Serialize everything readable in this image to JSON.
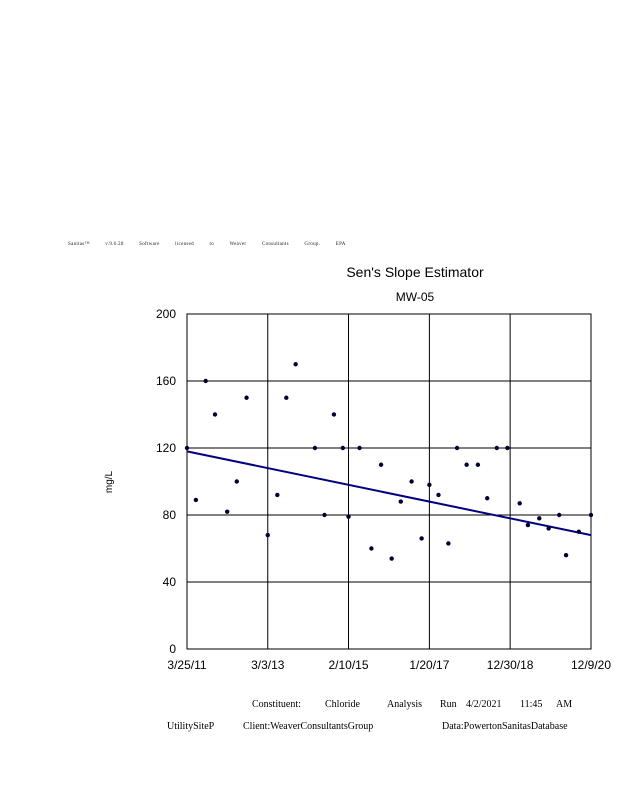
{
  "license": "Sanitas™ v.9.6.28 Software licensed to Weaver Consultants Group. EPA",
  "chart_data": {
    "type": "scatter",
    "title": "Sen's Slope Estimator",
    "subtitle": "MW-05",
    "ylabel": "mg/L",
    "xlabel": "",
    "ylim": [
      0,
      200
    ],
    "yticks": [
      0,
      40,
      80,
      120,
      160,
      200
    ],
    "xlim": [
      "2011-03-25",
      "2020-12-09"
    ],
    "xticks": [
      "2011-03-25",
      "2013-03-03",
      "2015-02-10",
      "2017-01-20",
      "2018-12-30",
      "2020-12-09"
    ],
    "xtick_labels": [
      "3/25/11",
      "3/3/13",
      "2/10/15",
      "1/20/17",
      "12/30/18",
      "12/9/20"
    ],
    "grid": true,
    "points": [
      {
        "x": "2011-03-25",
        "y": 120
      },
      {
        "x": "2011-06-11",
        "y": 89
      },
      {
        "x": "2011-09-05",
        "y": 160
      },
      {
        "x": "2011-11-26",
        "y": 140
      },
      {
        "x": "2012-03-12",
        "y": 82
      },
      {
        "x": "2012-06-04",
        "y": 100
      },
      {
        "x": "2012-08-29",
        "y": 150
      },
      {
        "x": "2013-03-03",
        "y": 68
      },
      {
        "x": "2013-05-26",
        "y": 92
      },
      {
        "x": "2013-08-13",
        "y": 150
      },
      {
        "x": "2013-11-03",
        "y": 170
      },
      {
        "x": "2014-04-21",
        "y": 120
      },
      {
        "x": "2014-07-14",
        "y": 80
      },
      {
        "x": "2014-10-05",
        "y": 140
      },
      {
        "x": "2014-12-22",
        "y": 120
      },
      {
        "x": "2015-02-10",
        "y": 79
      },
      {
        "x": "2015-05-18",
        "y": 120
      },
      {
        "x": "2015-08-30",
        "y": 60
      },
      {
        "x": "2015-11-23",
        "y": 110
      },
      {
        "x": "2016-02-24",
        "y": 54
      },
      {
        "x": "2016-05-14",
        "y": 88
      },
      {
        "x": "2016-08-17",
        "y": 100
      },
      {
        "x": "2016-11-13",
        "y": 66
      },
      {
        "x": "2017-01-20",
        "y": 98
      },
      {
        "x": "2017-04-10",
        "y": 92
      },
      {
        "x": "2017-07-06",
        "y": 63
      },
      {
        "x": "2017-09-20",
        "y": 120
      },
      {
        "x": "2017-12-13",
        "y": 110
      },
      {
        "x": "2018-03-22",
        "y": 110
      },
      {
        "x": "2018-06-12",
        "y": 90
      },
      {
        "x": "2018-09-04",
        "y": 120
      },
      {
        "x": "2018-12-06",
        "y": 120
      },
      {
        "x": "2019-03-24",
        "y": 87
      },
      {
        "x": "2019-06-04",
        "y": 74
      },
      {
        "x": "2019-09-12",
        "y": 78
      },
      {
        "x": "2019-12-03",
        "y": 72
      },
      {
        "x": "2020-03-05",
        "y": 80
      },
      {
        "x": "2020-05-04",
        "y": 56
      },
      {
        "x": "2020-08-24",
        "y": 70
      },
      {
        "x": "2020-12-09",
        "y": 80
      }
    ],
    "trend_line": {
      "start": {
        "x": "2011-03-25",
        "y": 118
      },
      "end": {
        "x": "2020-12-09",
        "y": 68
      }
    },
    "colors": {
      "points": "#000033",
      "trend": "#000080",
      "grid": "#000000"
    }
  },
  "footer": {
    "constituent": "Constituent:",
    "constituent_value": "Chloride",
    "analysis": "Analysis",
    "run": "Run",
    "run_date": "4/2/2021",
    "run_time": "11:45",
    "run_ampm": "AM",
    "site": "UtilitySiteP",
    "client": "Client:WeaverConsultantsGroup",
    "data": "Data:PowertonSanitasDatabase"
  }
}
